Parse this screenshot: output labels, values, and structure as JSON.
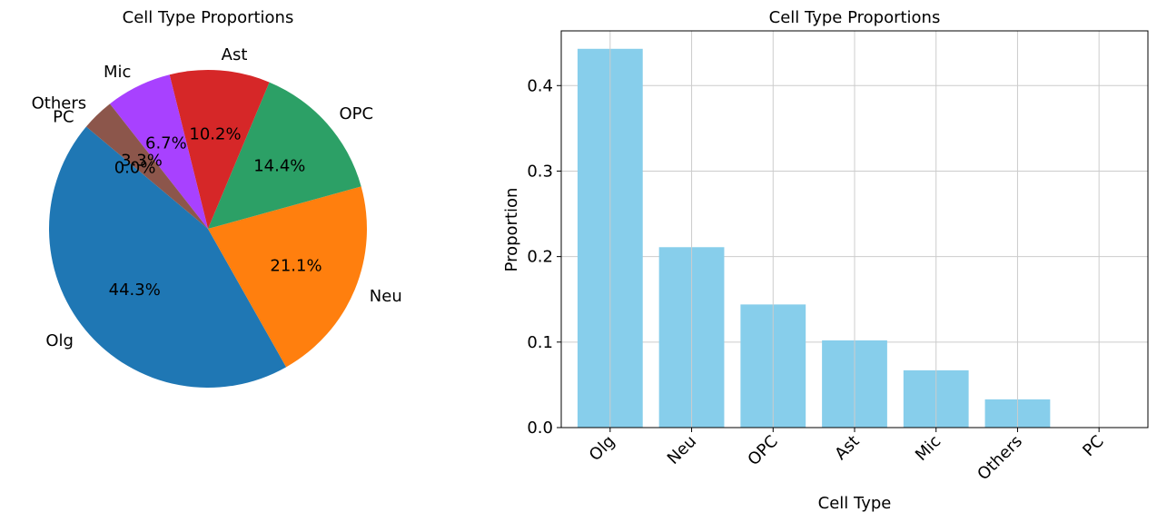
{
  "chart_data": [
    {
      "type": "pie",
      "title": "Cell Type Proportions",
      "categories": [
        "Olg",
        "Neu",
        "OPC",
        "Ast",
        "Mic",
        "Others",
        "PC"
      ],
      "values": [
        0.443,
        0.211,
        0.144,
        0.102,
        0.067,
        0.033,
        0.0
      ],
      "percent_labels": [
        "44.3%",
        "21.1%",
        "14.4%",
        "10.2%",
        "6.7%",
        "3.3%",
        "0.0%"
      ],
      "start_angle_deg": 140,
      "colors": [
        "#1f77b4",
        "#ff7f0e",
        "#2ca066",
        "#d62728",
        "#a841ff",
        "#8c564b",
        "#e377c2"
      ]
    },
    {
      "type": "bar",
      "title": "Cell Type Proportions",
      "categories": [
        "Olg",
        "Neu",
        "OPC",
        "Ast",
        "Mic",
        "Others",
        "PC"
      ],
      "values": [
        0.443,
        0.211,
        0.144,
        0.102,
        0.067,
        0.033,
        0.0
      ],
      "xlabel": "Cell Type",
      "ylabel": "Proportion",
      "ylim": [
        0,
        0.464
      ],
      "yticks": [
        "0.0",
        "0.1",
        "0.2",
        "0.3",
        "0.4"
      ],
      "grid": true,
      "bar_color": "#87ceeb"
    }
  ]
}
